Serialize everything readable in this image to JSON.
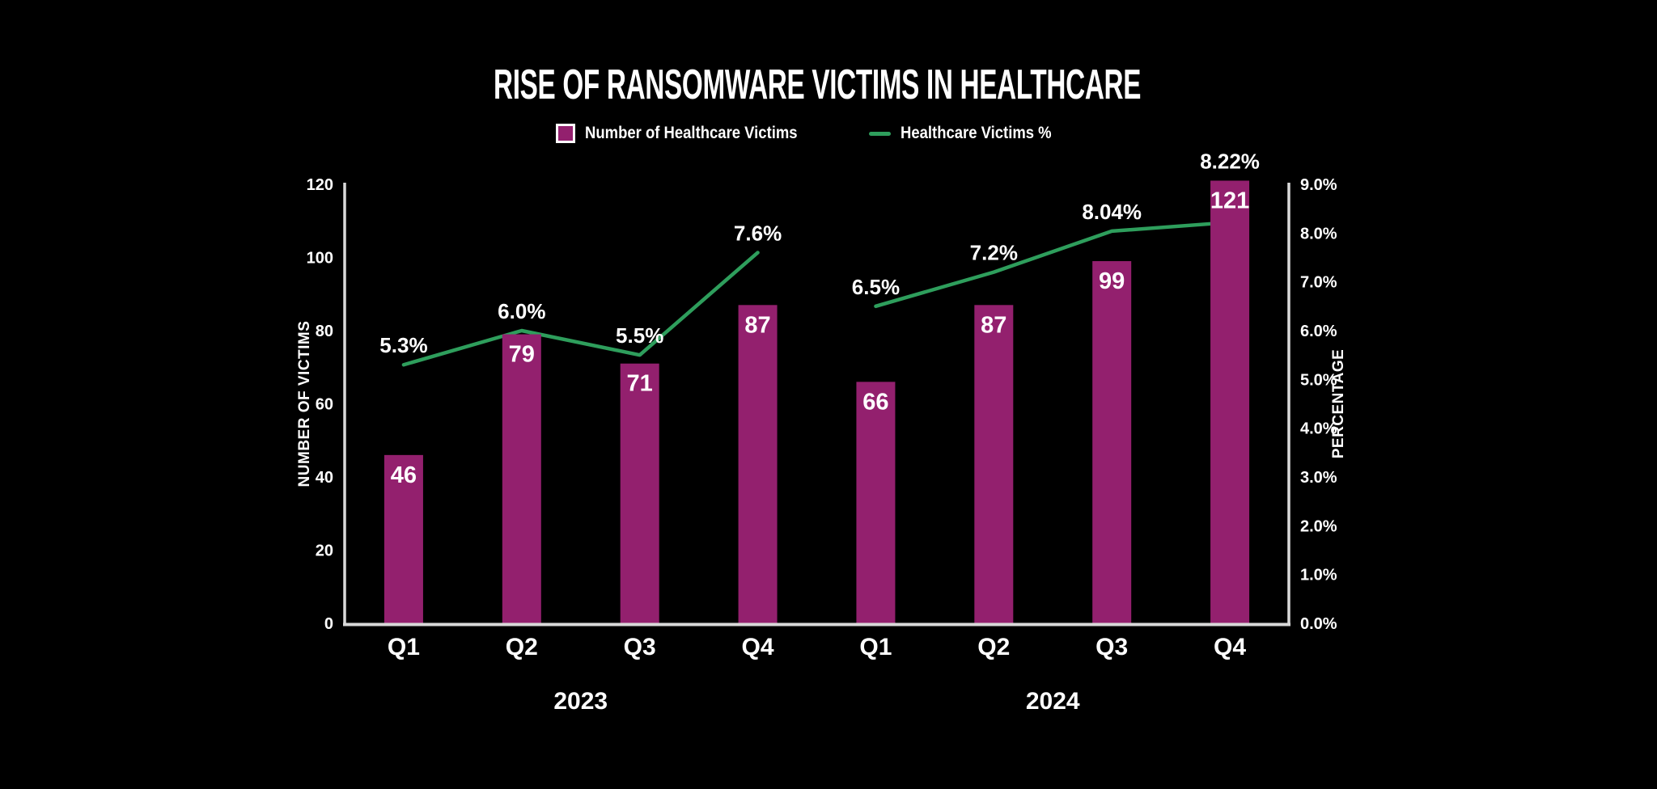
{
  "title": "RISE OF RANSOMWARE VICTIMS IN HEALTHCARE",
  "legend": {
    "items": [
      {
        "label": "Number of Healthcare Victims",
        "marker": "square",
        "color": "#93206E"
      },
      {
        "label": "Healthcare Victims %",
        "marker": "line",
        "color": "#2E9E5C"
      }
    ]
  },
  "chart_data": {
    "type": "combo-bar-line",
    "title": "RISE OF RANSOMWARE VICTIMS IN HEALTHCARE",
    "categories": [
      "Q1",
      "Q2",
      "Q3",
      "Q4",
      "Q1",
      "Q2",
      "Q3",
      "Q4"
    ],
    "group_labels": [
      {
        "label": "2023",
        "start": 0,
        "end": 3
      },
      {
        "label": "2024",
        "start": 4,
        "end": 7
      }
    ],
    "series": [
      {
        "name": "Number of Healthcare Victims",
        "type": "bar",
        "axis": "left",
        "color": "#93206E",
        "values": [
          46,
          79,
          71,
          87,
          66,
          87,
          99,
          121
        ],
        "data_labels": [
          "46",
          "79",
          "71",
          "87",
          "66",
          "87",
          "99",
          "121"
        ]
      },
      {
        "name": "Healthcare Victims %",
        "type": "line",
        "axis": "right",
        "color": "#2E9E5C",
        "values": [
          5.3,
          6.0,
          5.5,
          7.6,
          6.5,
          7.2,
          8.04,
          8.22
        ],
        "data_labels": [
          "5.3%",
          "6.0%",
          "5.5%",
          "7.6%",
          "6.5%",
          "7.2%",
          "8.04%",
          "8.22%"
        ]
      }
    ],
    "left_axis": {
      "label": "NUMBER OF VICTIMS",
      "min": 0,
      "max": 120,
      "tick_step": 20,
      "ticks": [
        "0",
        "20",
        "40",
        "60",
        "80",
        "100",
        "120"
      ]
    },
    "right_axis": {
      "label": "PERCENTAGE",
      "min": 0,
      "max": 9,
      "tick_step": 1,
      "ticks": [
        "0.0%",
        "1.0%",
        "2.0%",
        "3.0%",
        "4.0%",
        "5.0%",
        "6.0%",
        "7.0%",
        "8.0%",
        "9.0%"
      ]
    },
    "legend_position": "top",
    "grid": false,
    "line_breaks_between_groups": true,
    "colors": {
      "background": "#000000",
      "text": "#FFFFFF",
      "axis_line": "#D9D9D9"
    }
  }
}
